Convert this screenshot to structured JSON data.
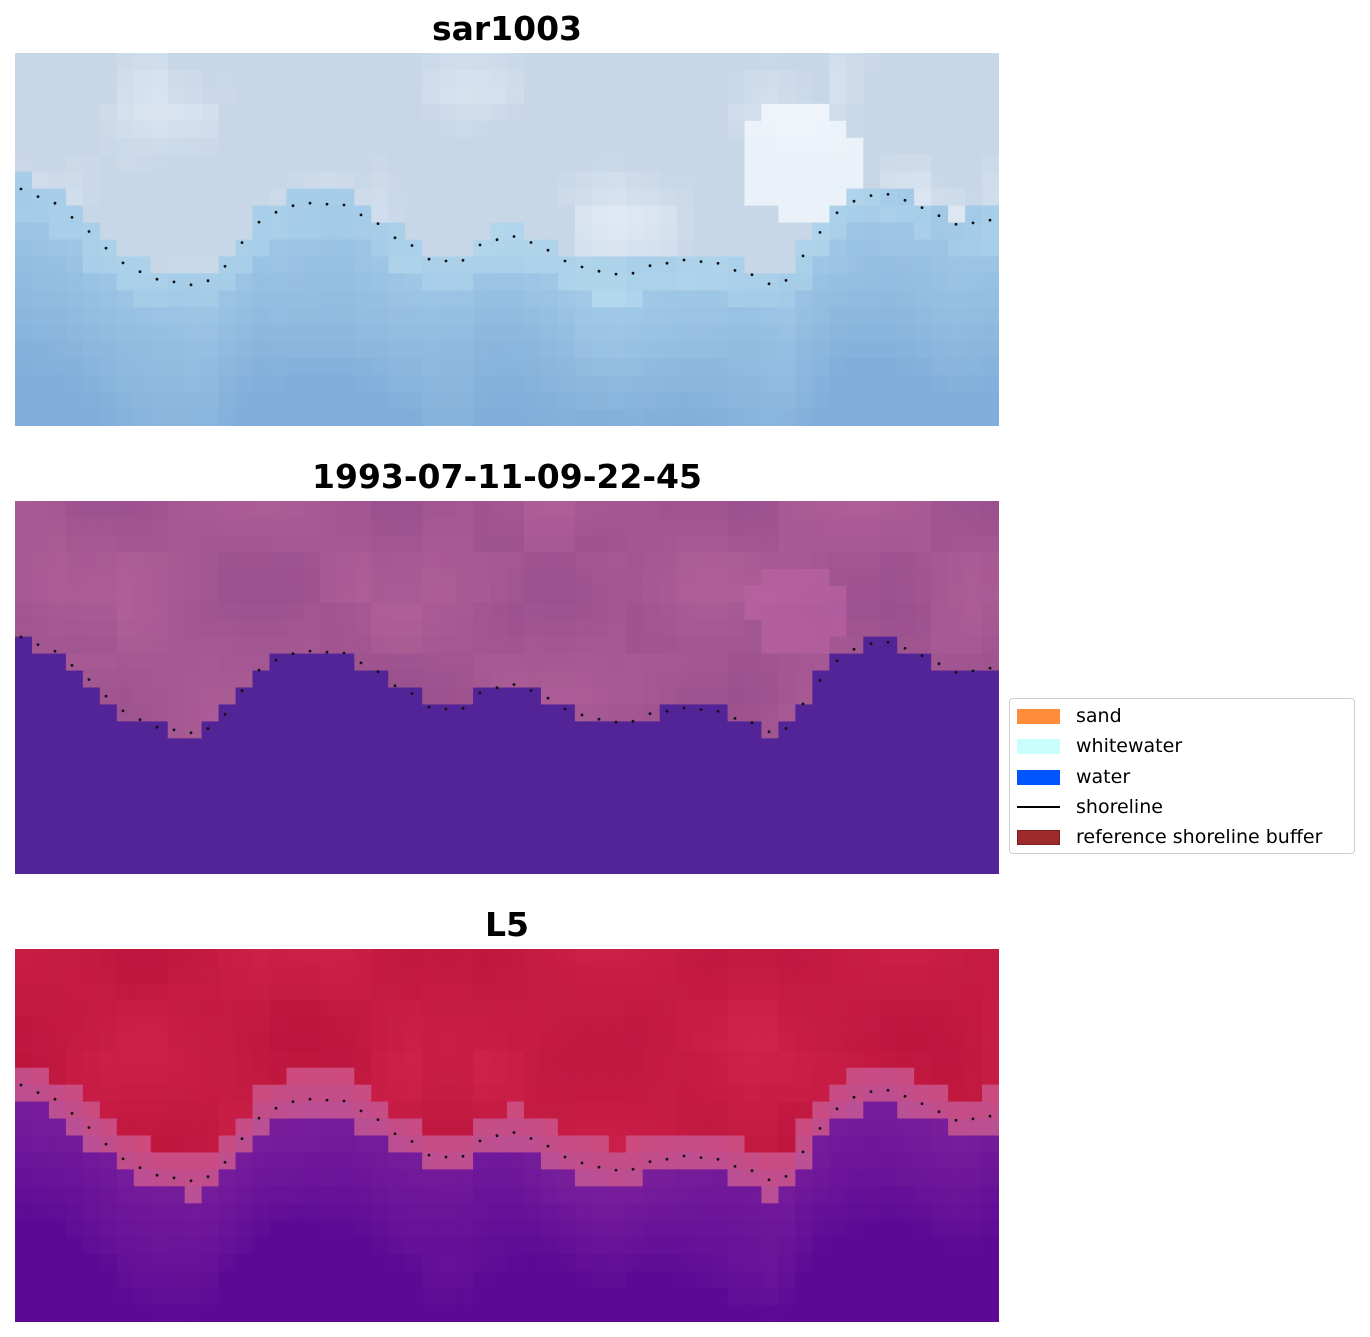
{
  "panels": [
    {
      "title": "sar1003",
      "style": "sar"
    },
    {
      "title": "1993-07-11-09-22-45",
      "style": "classified"
    },
    {
      "title": "L5",
      "style": "probability"
    }
  ],
  "legend": {
    "items": [
      {
        "label": "sand",
        "color": "#ff8c3a",
        "kind": "patch"
      },
      {
        "label": "whitewater",
        "color": "#c8fffd",
        "kind": "patch"
      },
      {
        "label": "water",
        "color": "#0055ff",
        "kind": "patch"
      },
      {
        "label": "shoreline",
        "color": "#000000",
        "kind": "line"
      },
      {
        "label": "reference shoreline buffer",
        "color": "#9e2a2b",
        "edge": "#7a1f1f",
        "kind": "patch"
      }
    ]
  }
}
